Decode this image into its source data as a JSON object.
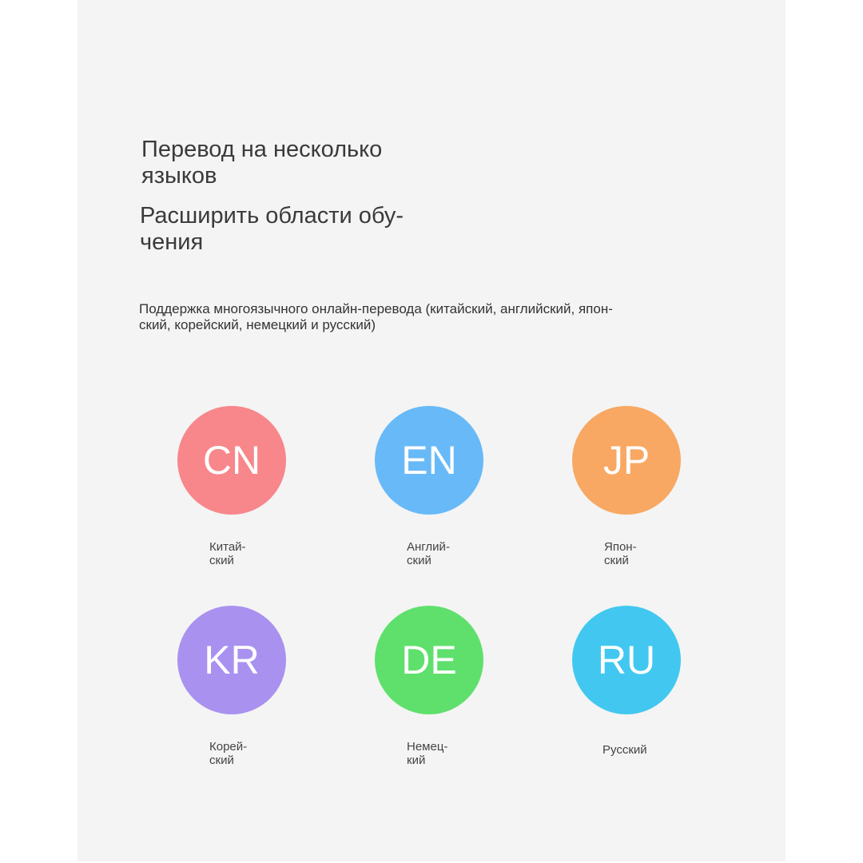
{
  "headings": [
    "Перевод на несколько\nязыков",
    "Расширить области обу-\nчения"
  ],
  "description": "Поддержка многоязычного онлайн-перевода (китайский, английский, япон-\nский, корейский, немецкий и русский)",
  "languages": [
    {
      "code": "CN",
      "label": "Китай-\nский",
      "color": "#f7878b"
    },
    {
      "code": "EN",
      "label": "Англий-\nский",
      "color": "#68b9f8"
    },
    {
      "code": "JP",
      "label": "Япон-\nский",
      "color": "#f8a862"
    },
    {
      "code": "KR",
      "label": "Корей-\nский",
      "color": "#a991f0"
    },
    {
      "code": "DE",
      "label": "Немец-\nкий",
      "color": "#5fe06d"
    },
    {
      "code": "RU",
      "label": "Русский",
      "color": "#42c8f0"
    }
  ]
}
